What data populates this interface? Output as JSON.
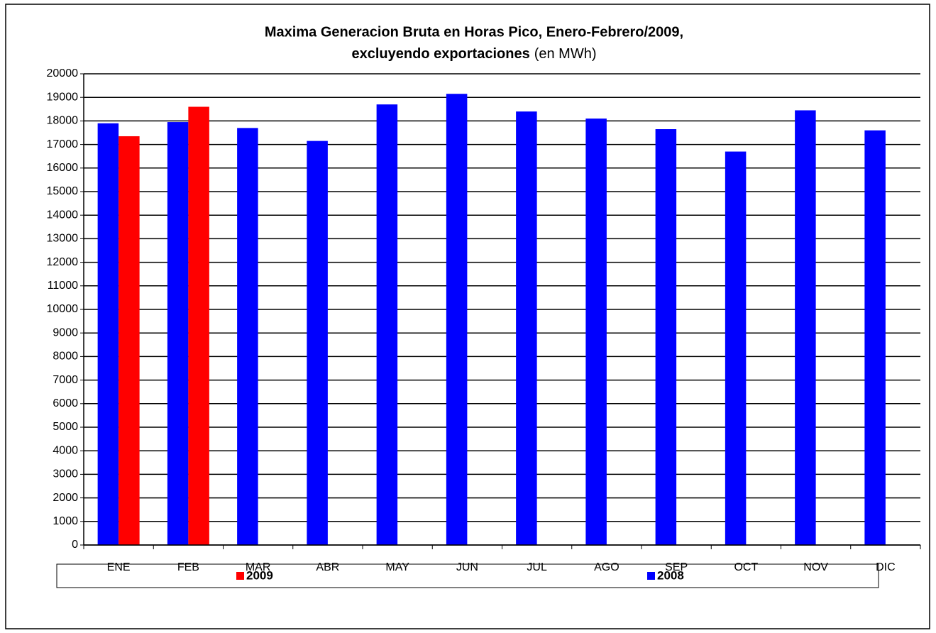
{
  "chart_data": {
    "type": "bar",
    "title": [
      "Maxima Generacion Bruta en Horas Pico, Enero-Febrero/2009,",
      "excluyendo exportaciones"
    ],
    "title_note": "(en MWh)",
    "categories": [
      "ENE",
      "FEB",
      "MAR",
      "ABR",
      "MAY",
      "JUN",
      "JUL",
      "AGO",
      "SEP",
      "OCT",
      "NOV",
      "DIC"
    ],
    "series": [
      {
        "name": "2008",
        "color": "#0000ff",
        "values": [
          17900,
          17950,
          17700,
          17150,
          18700,
          19150,
          18400,
          18100,
          17650,
          16700,
          18450,
          17600
        ]
      },
      {
        "name": "2009",
        "color": "#ff0000",
        "values": [
          17350,
          18600,
          null,
          null,
          null,
          null,
          null,
          null,
          null,
          null,
          null,
          null
        ]
      }
    ],
    "ylim": [
      0,
      20000
    ],
    "yticks": [
      0,
      1000,
      2000,
      3000,
      4000,
      5000,
      6000,
      7000,
      8000,
      9000,
      10000,
      11000,
      12000,
      13000,
      14000,
      15000,
      16000,
      17000,
      18000,
      19000,
      20000
    ],
    "grid": true,
    "legend": "bottom"
  }
}
